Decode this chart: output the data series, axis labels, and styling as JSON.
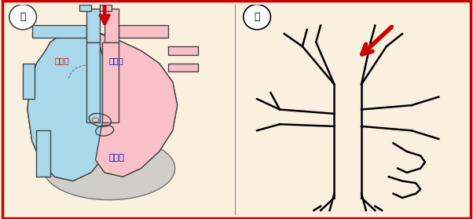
{
  "background_color": "#faf0e0",
  "border_color": "#cc0000",
  "panel_ga_label": "가",
  "panel_na_label": "나",
  "text_daedong": "대동맥",
  "text_pye": "폐동맥",
  "text_woo": "우심실",
  "text_color_daedong": "#cc0000",
  "text_color_pye": "#0000cc",
  "text_color_woo": "#0000cc",
  "light_blue": "#a8d8ea",
  "light_pink": "#f9c0c8",
  "dark_outline": "#444444",
  "red_arrow": "#cc0000",
  "gray_fill": "#c0bfbf"
}
